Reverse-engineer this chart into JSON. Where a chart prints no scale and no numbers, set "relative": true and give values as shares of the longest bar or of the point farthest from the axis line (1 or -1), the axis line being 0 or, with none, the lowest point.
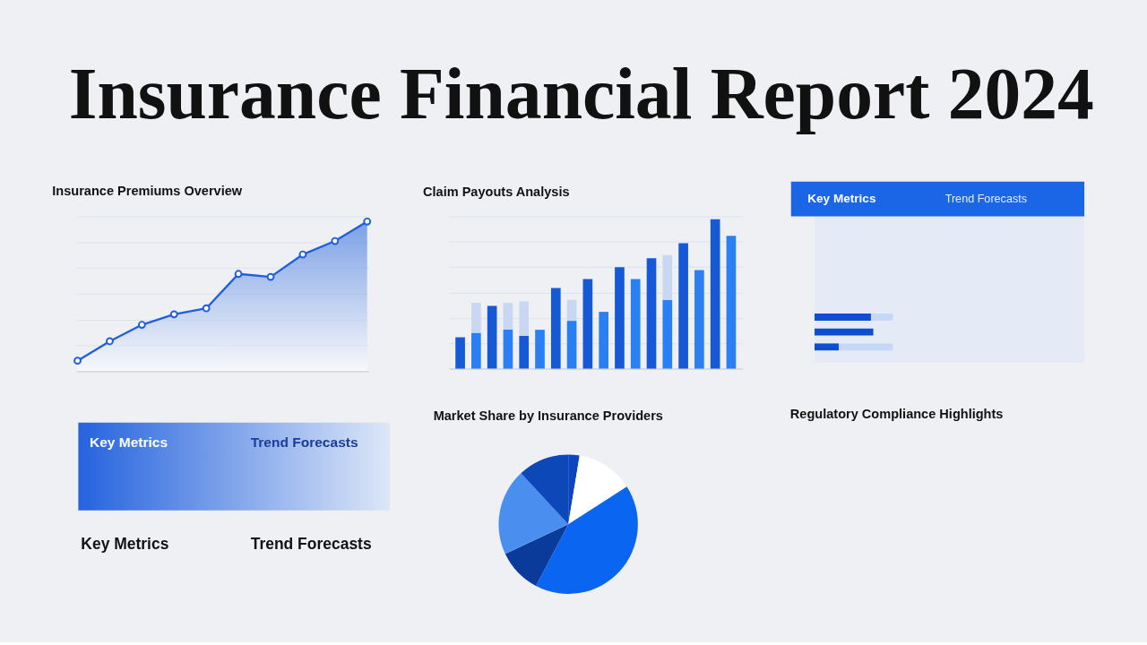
{
  "chart_data": [
    {
      "type": "other",
      "title": "Insurance Financial Report 2024"
    },
    {
      "type": "area",
      "title": "Insurance Premiums Overview",
      "relative": true,
      "categories": [
        null,
        null,
        null,
        null,
        null,
        null,
        null,
        null,
        null,
        null
      ],
      "series": [
        {
          "color": "#1f5fdc",
          "values": [
            0.07,
            0.2,
            0.31,
            0.38,
            0.42,
            0.65,
            0.63,
            0.78,
            0.87,
            1
          ]
        }
      ],
      "marker": "circle",
      "grid": "y"
    },
    {
      "type": "bar",
      "title": "Claim Payouts Analysis",
      "relative": true,
      "stacked": true,
      "categories": [
        null,
        null,
        null,
        null,
        null,
        null,
        null,
        null,
        null,
        null,
        null,
        null,
        null,
        null,
        null,
        null,
        null,
        null
      ],
      "series": [
        {
          "color": "#1659d6",
          "values": [
            0.21,
            null,
            0.42,
            null,
            0.22,
            null,
            0.54,
            null,
            0.6,
            null,
            0.68,
            null,
            0.74,
            null,
            0.84,
            null,
            1,
            null
          ]
        },
        {
          "color": "#2a7ff2",
          "values": [
            null,
            0.24,
            null,
            0.26,
            null,
            0.26,
            null,
            0.32,
            null,
            0.38,
            null,
            0.6,
            null,
            0.46,
            null,
            0.66,
            null,
            0.89
          ]
        },
        {
          "color": "#c8d8f2",
          "values": [
            null,
            0.2,
            null,
            0.18,
            0.23,
            null,
            null,
            0.14,
            null,
            null,
            null,
            null,
            null,
            0.3,
            null,
            null,
            null,
            null
          ]
        }
      ],
      "grid": "y"
    },
    {
      "type": "bar",
      "orientation": "horizontal",
      "relative": true,
      "stacked": true,
      "annotations": [
        "Key Metrics",
        "Trend Forecasts"
      ],
      "categories": [
        null,
        null,
        null
      ],
      "series": [
        {
          "color": "#0d4fd0",
          "values": [
            0.72,
            0.75,
            0.31
          ]
        },
        {
          "color": "#c5d8f6",
          "values": [
            0.28,
            null,
            0.69
          ]
        }
      ]
    },
    {
      "type": "other",
      "annotations": [
        "Key Metrics",
        "Trend Forecasts",
        "Key Metrics",
        "Trend Forecasts"
      ]
    },
    {
      "type": "pie",
      "title": "Market Share by Insurance Providers",
      "categories": [
        null,
        null,
        null,
        null,
        null,
        null
      ],
      "values": [
        2.6,
        13.3,
        41.8,
        10.3,
        20.1,
        11.9
      ],
      "colors": [
        "#0b45c0",
        "#ffffff",
        "#0a66f0",
        "#0a3a9a",
        "#4a8ff0",
        "#0d48b8"
      ]
    },
    {
      "type": "other",
      "title": "Regulatory Compliance Highlights"
    }
  ]
}
